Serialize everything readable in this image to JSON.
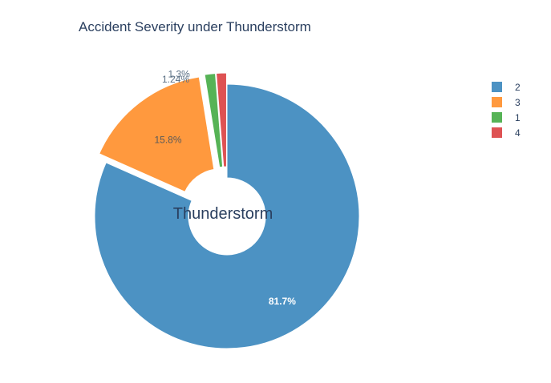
{
  "chart_data": {
    "type": "pie",
    "title": "Accident Severity under Thunderstorm",
    "center_label": "Thunderstorm",
    "hole": true,
    "legend_position": "right",
    "slices": [
      {
        "label": "2",
        "value": 81.7,
        "text": "81.7%",
        "color": "#4c92c3",
        "pulled": false,
        "label_inside": true
      },
      {
        "label": "3",
        "value": 15.8,
        "text": "15.8%",
        "color": "#ff993e",
        "pulled": true,
        "label_inside": true
      },
      {
        "label": "1",
        "value": 1.3,
        "text": "1.3%",
        "color": "#56b356",
        "pulled": true,
        "label_inside": false
      },
      {
        "label": "4",
        "value": 1.24,
        "text": "1.24%",
        "color": "#de5253",
        "pulled": true,
        "label_inside": false
      }
    ],
    "legend": [
      "2",
      "3",
      "1",
      "4"
    ]
  }
}
